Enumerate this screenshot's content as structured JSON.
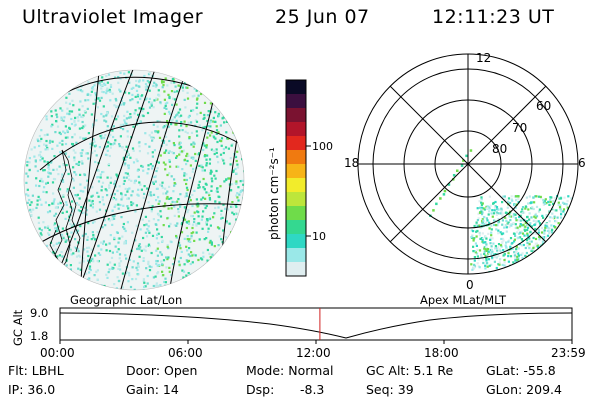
{
  "header": {
    "instrument": "Ultraviolet Imager",
    "date": "25 Jun 07",
    "time": "12:11:23 UT"
  },
  "colorbar": {
    "unit_label": "photon cm⁻²s⁻¹",
    "ticks": [
      "100",
      "10"
    ],
    "colors": [
      "#0a0a26",
      "#3b0f3f",
      "#7a1230",
      "#b2152a",
      "#e2281e",
      "#f07a10",
      "#f7b417",
      "#f2ec2b",
      "#bde63b",
      "#6fdc4a",
      "#34d890",
      "#2fd8c4",
      "#9ae8e8",
      "#dfeef0"
    ]
  },
  "geo_panel": {
    "caption": "Geographic Lat/Lon"
  },
  "polar_panel": {
    "caption": "Apex MLat/MLT",
    "mlt_labels": {
      "top": "12",
      "left": "18",
      "right": "6",
      "bottom": "0"
    },
    "lat_labels": [
      "60",
      "70",
      "80"
    ]
  },
  "timeline": {
    "axis_label": "GC Alt",
    "y_ticks": [
      "9.0",
      "1.8"
    ],
    "x_ticks": [
      "00:00",
      "06:00",
      "12:00",
      "18:00",
      "23:59"
    ],
    "current_marker_time": "12:11",
    "marker_color": "#d02020"
  },
  "info": {
    "flt": "Flt: LBHL",
    "ip": "IP: 36.0",
    "door": "Door: Open",
    "gain": "Gain: 14",
    "mode": "Mode: Normal",
    "dsp_label": "Dsp:",
    "dsp_value": "-8.3",
    "gc_alt": "GC Alt: 5.1 Re",
    "seq": "Seq: 39",
    "glat": "GLat: -55.8",
    "glon": "GLon: 209.4"
  }
}
